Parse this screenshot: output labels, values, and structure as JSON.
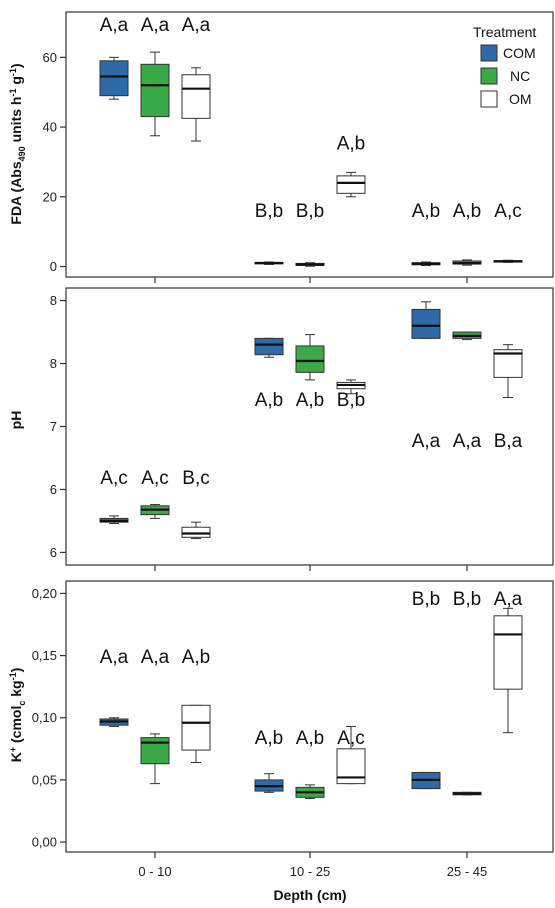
{
  "chart_data": {
    "type": "box",
    "xlabel": "Depth (cm)",
    "categories": [
      "0 - 10",
      "10 - 25",
      "25 - 45"
    ],
    "legend": {
      "title": "Treatment",
      "placement": "top-right",
      "entries": [
        {
          "name": "COM",
          "color": "#2e6aa8"
        },
        {
          "name": "NC",
          "color": "#3aaa48"
        },
        {
          "name": "OM",
          "color": "#ffffff"
        }
      ]
    },
    "panels": [
      {
        "id": "fda",
        "ylabel_main": "FDA (Abs",
        "ylabel_sub": "490",
        "ylabel_mid": " units h",
        "ylabel_sup1": "-1",
        "ylabel_mid2": " g",
        "ylabel_sup2": "-1",
        "ylabel_end": ")",
        "ylim": [
          -3,
          73
        ],
        "yticks": [
          0,
          20,
          40,
          60
        ],
        "ytick_labels": [
          "0",
          "20",
          "40",
          "60"
        ],
        "boxes": [
          {
            "category": "0 - 10",
            "series": "COM",
            "min": 48.0,
            "q1": 49.0,
            "median": 54.5,
            "q3": 59.0,
            "max": 60.0,
            "label": "A,a"
          },
          {
            "category": "0 - 10",
            "series": "NC",
            "min": 37.5,
            "q1": 43.0,
            "median": 52.0,
            "q3": 58.0,
            "max": 61.5,
            "label": "A,a"
          },
          {
            "category": "0 - 10",
            "series": "OM",
            "min": 36.0,
            "q1": 42.5,
            "median": 51.0,
            "q3": 55.0,
            "max": 57.0,
            "label": "A,a"
          },
          {
            "category": "10 - 25",
            "series": "COM",
            "min": 0.6,
            "q1": 0.8,
            "median": 1.0,
            "q3": 1.2,
            "max": 1.3,
            "label": "B,b"
          },
          {
            "category": "10 - 25",
            "series": "NC",
            "min": 0.1,
            "q1": 0.3,
            "median": 0.6,
            "q3": 0.9,
            "max": 1.1,
            "label": "B,b"
          },
          {
            "category": "10 - 25",
            "series": "OM",
            "min": 20.0,
            "q1": 21.0,
            "median": 24.0,
            "q3": 26.0,
            "max": 27.0,
            "label": "A,b"
          },
          {
            "category": "25 - 45",
            "series": "COM",
            "min": 0.3,
            "q1": 0.5,
            "median": 0.8,
            "q3": 1.1,
            "max": 1.3,
            "label": "A,b"
          },
          {
            "category": "25 - 45",
            "series": "NC",
            "min": 0.4,
            "q1": 0.7,
            "median": 1.0,
            "q3": 1.6,
            "max": 1.9,
            "label": "A,b"
          },
          {
            "category": "25 - 45",
            "series": "OM",
            "min": 1.2,
            "q1": 1.3,
            "median": 1.5,
            "q3": 1.7,
            "max": 1.8,
            "label": "A,c"
          }
        ]
      },
      {
        "id": "ph",
        "ylabel_main": "pH",
        "ylim": [
          5.9,
          8.1
        ],
        "yticks": [
          6,
          6.5,
          7,
          7.5,
          8
        ],
        "ytick_labels": [
          "6",
          "6",
          "7",
          "8",
          "8"
        ],
        "boxes": [
          {
            "category": "0 - 10",
            "series": "COM",
            "min": 6.23,
            "q1": 6.24,
            "median": 6.25,
            "q3": 6.27,
            "max": 6.29,
            "label": "A,c"
          },
          {
            "category": "0 - 10",
            "series": "NC",
            "min": 6.27,
            "q1": 6.3,
            "median": 6.34,
            "q3": 6.37,
            "max": 6.38,
            "label": "A,c"
          },
          {
            "category": "0 - 10",
            "series": "OM",
            "min": 6.11,
            "q1": 6.12,
            "median": 6.15,
            "q3": 6.2,
            "max": 6.24,
            "label": "B,c"
          },
          {
            "category": "10 - 25",
            "series": "COM",
            "min": 7.55,
            "q1": 7.57,
            "median": 7.65,
            "q3": 7.7,
            "max": 7.7,
            "label": "A,b"
          },
          {
            "category": "10 - 25",
            "series": "NC",
            "min": 7.37,
            "q1": 7.43,
            "median": 7.52,
            "q3": 7.64,
            "max": 7.73,
            "label": "A,b"
          },
          {
            "category": "10 - 25",
            "series": "OM",
            "min": 7.26,
            "q1": 7.3,
            "median": 7.33,
            "q3": 7.35,
            "max": 7.37,
            "label": "B,b"
          },
          {
            "category": "25 - 45",
            "series": "COM",
            "min": 7.7,
            "q1": 7.7,
            "median": 7.8,
            "q3": 7.93,
            "max": 7.99,
            "label": "A,a"
          },
          {
            "category": "25 - 45",
            "series": "NC",
            "min": 7.69,
            "q1": 7.7,
            "median": 7.72,
            "q3": 7.75,
            "max": 7.75,
            "label": "A,a"
          },
          {
            "category": "25 - 45",
            "series": "OM",
            "min": 7.23,
            "q1": 7.39,
            "median": 7.58,
            "q3": 7.61,
            "max": 7.65,
            "label": "B,a"
          }
        ]
      },
      {
        "id": "k",
        "ylabel_main": "K",
        "ylabel_supk": "+",
        "ylabel_mid": " (cmol",
        "ylabel_sub": "c",
        "ylabel_mid2": " kg",
        "ylabel_sup2": "-1",
        "ylabel_end": ")",
        "ylim": [
          -0.008,
          0.21
        ],
        "yticks": [
          0,
          0.05,
          0.1,
          0.15,
          0.2
        ],
        "ytick_labels": [
          "0,00",
          "0,05",
          "0,10",
          "0,15",
          "0,20"
        ],
        "boxes": [
          {
            "category": "0 - 10",
            "series": "COM",
            "min": 0.093,
            "q1": 0.094,
            "median": 0.097,
            "q3": 0.099,
            "max": 0.1,
            "label": "A,a"
          },
          {
            "category": "0 - 10",
            "series": "NC",
            "min": 0.047,
            "q1": 0.063,
            "median": 0.08,
            "q3": 0.084,
            "max": 0.087,
            "label": "A,a"
          },
          {
            "category": "0 - 10",
            "series": "OM",
            "min": 0.064,
            "q1": 0.074,
            "median": 0.096,
            "q3": 0.11,
            "max": 0.11,
            "label": "A,b"
          },
          {
            "category": "10 - 25",
            "series": "COM",
            "min": 0.04,
            "q1": 0.041,
            "median": 0.045,
            "q3": 0.05,
            "max": 0.055,
            "label": "A,b"
          },
          {
            "category": "10 - 25",
            "series": "NC",
            "min": 0.035,
            "q1": 0.036,
            "median": 0.04,
            "q3": 0.044,
            "max": 0.046,
            "label": "A,b"
          },
          {
            "category": "10 - 25",
            "series": "OM",
            "min": 0.047,
            "q1": 0.047,
            "median": 0.052,
            "q3": 0.075,
            "max": 0.093,
            "label": "A,c"
          },
          {
            "category": "25 - 45",
            "series": "COM",
            "min": 0.043,
            "q1": 0.043,
            "median": 0.05,
            "q3": 0.056,
            "max": 0.056,
            "label": "B,b"
          },
          {
            "category": "25 - 45",
            "series": "NC",
            "min": 0.038,
            "q1": 0.038,
            "median": 0.039,
            "q3": 0.04,
            "max": 0.04,
            "label": "B,b"
          },
          {
            "category": "25 - 45",
            "series": "OM",
            "min": 0.088,
            "q1": 0.123,
            "median": 0.167,
            "q3": 0.182,
            "max": 0.188,
            "label": "A,a"
          }
        ]
      }
    ]
  }
}
